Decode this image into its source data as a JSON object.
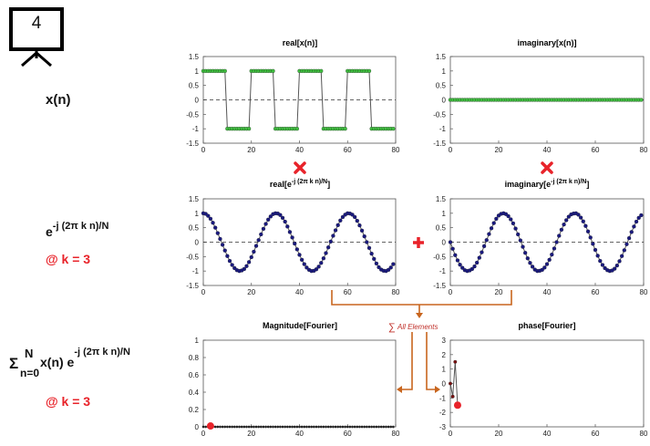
{
  "slide": {
    "number": "4"
  },
  "rows": {
    "signal": {
      "label": "x(n)"
    },
    "kernel": {
      "base": "e",
      "exponent": "-j (2π k n)/N",
      "k_note": "@ k = 3"
    },
    "result": {
      "sigma": "Σ",
      "upper": "N",
      "lower": "n=0",
      "body": "x(n) e",
      "exponent": "-j (2π k n)/N",
      "k_note": "@ k = 3"
    }
  },
  "annotations": {
    "sum_label": "All Elements"
  },
  "charts": {
    "real_x": {
      "title": "real[x(n)]",
      "x_ticks": [
        "0",
        "20",
        "40",
        "60",
        "80"
      ],
      "y_ticks": [
        "1.5",
        "1",
        "0.5",
        "0",
        "-0.5",
        "-1",
        "-1.5"
      ]
    },
    "imag_x": {
      "title": "imaginary[x(n)]",
      "x_ticks": [
        "0",
        "20",
        "40",
        "60",
        "80"
      ],
      "y_ticks": [
        "1.5",
        "1",
        "0.5",
        "0",
        "-0.5",
        "-1",
        "-1.5"
      ]
    },
    "real_e": {
      "title_main": "real[e",
      "title_sup": "-j (2π k n)/N",
      "title_end": "]",
      "x_ticks": [
        "0",
        "20",
        "40",
        "60",
        "80"
      ],
      "y_ticks": [
        "1.5",
        "1",
        "0.5",
        "0",
        "-0.5",
        "-1",
        "-1.5"
      ]
    },
    "imag_e": {
      "title_main": "imaginary[e",
      "title_sup": "-j (2π k n)/N",
      "title_end": "]",
      "x_ticks": [
        "0",
        "20",
        "40",
        "60",
        "80"
      ],
      "y_ticks": [
        "1.5",
        "1",
        "0.5",
        "0",
        "-0.5",
        "-1",
        "-1.5"
      ]
    },
    "magnitude": {
      "title": "Magnitude[Fourier]",
      "x_ticks": [
        "0",
        "20",
        "40",
        "60",
        "80"
      ],
      "y_ticks": [
        "1",
        "0.8",
        "0.6",
        "0.4",
        "0.2",
        "0"
      ]
    },
    "phase": {
      "title": "phase[Fourier]",
      "x_ticks": [
        "0",
        "20",
        "40",
        "60",
        "80"
      ],
      "y_ticks": [
        "3",
        "2",
        "1",
        "0",
        "-1",
        "-2",
        "-3"
      ]
    }
  },
  "colors": {
    "signal_dots": "#3fbf3f",
    "kernel_dots": "#1a1a80",
    "highlight": "#e8232a",
    "flow_arrow": "#c8651e",
    "multiply_x": "#e8232a",
    "plus": "#e8232a"
  },
  "chart_data": [
    {
      "type": "line",
      "title": "real[x(n)]",
      "xlim": [
        0,
        80
      ],
      "ylim": [
        -1.5,
        1.5
      ],
      "x": [
        0,
        1,
        2,
        3,
        4,
        5,
        6,
        7,
        8,
        9,
        10,
        11,
        12,
        13,
        14,
        15,
        16,
        17,
        18,
        19,
        20,
        21,
        22,
        23,
        24,
        25,
        26,
        27,
        28,
        29,
        30,
        31,
        32,
        33,
        34,
        35,
        36,
        37,
        38,
        39,
        40,
        41,
        42,
        43,
        44,
        45,
        46,
        47,
        48,
        49,
        50,
        51,
        52,
        53,
        54,
        55,
        56,
        57,
        58,
        59,
        60,
        61,
        62,
        63,
        64,
        65,
        66,
        67,
        68,
        69,
        70,
        71,
        72,
        73,
        74,
        75,
        76,
        77,
        78,
        79
      ],
      "y": [
        1,
        1,
        1,
        1,
        1,
        1,
        1,
        1,
        1,
        1,
        -1,
        -1,
        -1,
        -1,
        -1,
        -1,
        -1,
        -1,
        -1,
        -1,
        1,
        1,
        1,
        1,
        1,
        1,
        1,
        1,
        1,
        1,
        -1,
        -1,
        -1,
        -1,
        -1,
        -1,
        -1,
        -1,
        -1,
        -1,
        1,
        1,
        1,
        1,
        1,
        1,
        1,
        1,
        1,
        1,
        -1,
        -1,
        -1,
        -1,
        -1,
        -1,
        -1,
        -1,
        -1,
        -1,
        1,
        1,
        1,
        1,
        1,
        1,
        1,
        1,
        1,
        1,
        -1,
        -1,
        -1,
        -1,
        -1,
        -1,
        -1,
        -1,
        -1,
        -1
      ]
    },
    {
      "type": "line",
      "title": "imaginary[x(n)]",
      "xlim": [
        0,
        80
      ],
      "ylim": [
        -1.5,
        1.5
      ],
      "x": [
        0,
        1,
        2,
        3,
        4,
        5,
        6,
        7,
        8,
        9,
        10,
        11,
        12,
        13,
        14,
        15,
        16,
        17,
        18,
        19,
        20,
        21,
        22,
        23,
        24,
        25,
        26,
        27,
        28,
        29,
        30,
        31,
        32,
        33,
        34,
        35,
        36,
        37,
        38,
        39,
        40,
        41,
        42,
        43,
        44,
        45,
        46,
        47,
        48,
        49,
        50,
        51,
        52,
        53,
        54,
        55,
        56,
        57,
        58,
        59,
        60,
        61,
        62,
        63,
        64,
        65,
        66,
        67,
        68,
        69,
        70,
        71,
        72,
        73,
        74,
        75,
        76,
        77,
        78,
        79
      ],
      "y": [
        0,
        0,
        0,
        0,
        0,
        0,
        0,
        0,
        0,
        0,
        0,
        0,
        0,
        0,
        0,
        0,
        0,
        0,
        0,
        0,
        0,
        0,
        0,
        0,
        0,
        0,
        0,
        0,
        0,
        0,
        0,
        0,
        0,
        0,
        0,
        0,
        0,
        0,
        0,
        0,
        0,
        0,
        0,
        0,
        0,
        0,
        0,
        0,
        0,
        0,
        0,
        0,
        0,
        0,
        0,
        0,
        0,
        0,
        0,
        0,
        0,
        0,
        0,
        0,
        0,
        0,
        0,
        0,
        0,
        0,
        0,
        0,
        0,
        0,
        0,
        0,
        0,
        0,
        0,
        0
      ]
    },
    {
      "type": "line",
      "title": "real[e^-j (2π k n)/N]",
      "xlim": [
        0,
        80
      ],
      "ylim": [
        -1.5,
        1.5
      ],
      "x": [
        0,
        1,
        2,
        3,
        4,
        5,
        6,
        7,
        8,
        9,
        10,
        11,
        12,
        13,
        14,
        15,
        16,
        17,
        18,
        19,
        20,
        21,
        22,
        23,
        24,
        25,
        26,
        27,
        28,
        29,
        30,
        31,
        32,
        33,
        34,
        35,
        36,
        37,
        38,
        39,
        40,
        41,
        42,
        43,
        44,
        45,
        46,
        47,
        48,
        49,
        50,
        51,
        52,
        53,
        54,
        55,
        56,
        57,
        58,
        59,
        60,
        61,
        62,
        63,
        64,
        65,
        66,
        67,
        68,
        69,
        70,
        71,
        72,
        73,
        74,
        75,
        76,
        77,
        78,
        79
      ],
      "y": [
        1,
        0.98,
        0.91,
        0.81,
        0.67,
        0.5,
        0.31,
        0.11,
        -0.09,
        -0.29,
        -0.48,
        -0.65,
        -0.79,
        -0.9,
        -0.97,
        -1,
        -0.98,
        -0.93,
        -0.83,
        -0.69,
        -0.52,
        -0.33,
        -0.13,
        0.07,
        0.27,
        0.46,
        0.63,
        0.78,
        0.89,
        0.97,
        1,
        0.99,
        0.94,
        0.84,
        0.71,
        0.54,
        0.35,
        0.16,
        -0.05,
        -0.25,
        -0.44,
        -0.61,
        -0.76,
        -0.88,
        -0.96,
        -1,
        -0.99,
        -0.94,
        -0.85,
        -0.72,
        -0.56,
        -0.38,
        -0.18,
        0.02,
        0.22,
        0.41,
        0.59,
        0.75,
        0.87,
        0.95,
        1,
        0.99,
        0.95,
        0.87,
        0.74,
        0.58,
        0.4,
        0.2,
        0,
        -0.2,
        -0.4,
        -0.58,
        -0.74,
        -0.87,
        -0.95,
        -0.99,
        -1,
        -0.96,
        -0.88,
        -0.76
      ]
    },
    {
      "type": "line",
      "title": "imaginary[e^-j (2π k n)/N]",
      "xlim": [
        0,
        80
      ],
      "ylim": [
        -1.5,
        1.5
      ],
      "x": [
        0,
        1,
        2,
        3,
        4,
        5,
        6,
        7,
        8,
        9,
        10,
        11,
        12,
        13,
        14,
        15,
        16,
        17,
        18,
        19,
        20,
        21,
        22,
        23,
        24,
        25,
        26,
        27,
        28,
        29,
        30,
        31,
        32,
        33,
        34,
        35,
        36,
        37,
        38,
        39,
        40,
        41,
        42,
        43,
        44,
        45,
        46,
        47,
        48,
        49,
        50,
        51,
        52,
        53,
        54,
        55,
        56,
        57,
        58,
        59,
        60,
        61,
        62,
        63,
        64,
        65,
        66,
        67,
        68,
        69,
        70,
        71,
        72,
        73,
        74,
        75,
        76,
        77,
        78,
        79
      ],
      "y": [
        0,
        -0.23,
        -0.45,
        -0.63,
        -0.78,
        -0.89,
        -0.97,
        -1,
        -0.98,
        -0.93,
        -0.84,
        -0.71,
        -0.54,
        -0.35,
        -0.14,
        0.07,
        0.28,
        0.48,
        0.66,
        0.81,
        0.92,
        0.98,
        1,
        0.97,
        0.9,
        0.79,
        0.65,
        0.47,
        0.27,
        0.06,
        -0.16,
        -0.37,
        -0.56,
        -0.72,
        -0.85,
        -0.95,
        -1,
        -0.99,
        -0.96,
        -0.88,
        -0.76,
        -0.61,
        -0.43,
        -0.22,
        0,
        0.22,
        0.43,
        0.61,
        0.76,
        0.88,
        0.96,
        0.99,
        1,
        0.95,
        0.85,
        0.72,
        0.56,
        0.37,
        0.16,
        -0.06,
        -0.27,
        -0.47,
        -0.65,
        -0.79,
        -0.9,
        -0.97,
        -1,
        -0.98,
        -0.92,
        -0.81,
        -0.66,
        -0.48,
        -0.28,
        -0.07,
        0.14,
        0.35,
        0.54,
        0.71,
        0.84,
        0.93
      ]
    },
    {
      "type": "line",
      "title": "Magnitude[Fourier]",
      "xlim": [
        0,
        80
      ],
      "ylim": [
        0,
        1
      ],
      "x": [
        0,
        1,
        2,
        3,
        4,
        5,
        6,
        7,
        8,
        9,
        10,
        11,
        12,
        13,
        14,
        15,
        16,
        17,
        18,
        19,
        20,
        21,
        22,
        23,
        24,
        25,
        26,
        27,
        28,
        29,
        30,
        31,
        32,
        33,
        34,
        35,
        36,
        37,
        38,
        39,
        40,
        41,
        42,
        43,
        44,
        45,
        46,
        47,
        48,
        49,
        50,
        51,
        52,
        53,
        54,
        55,
        56,
        57,
        58,
        59,
        60,
        61,
        62,
        63,
        64,
        65,
        66,
        67,
        68,
        69,
        70,
        71,
        72,
        73,
        74,
        75,
        76,
        77,
        78,
        79
      ],
      "y": [
        0,
        0,
        0,
        0.01,
        0,
        0,
        0,
        0,
        0,
        0,
        0,
        0,
        0,
        0,
        0,
        0,
        0,
        0,
        0,
        0,
        0,
        0,
        0,
        0,
        0,
        0,
        0,
        0,
        0,
        0,
        0,
        0,
        0,
        0,
        0,
        0,
        0,
        0,
        0,
        0,
        0,
        0,
        0,
        0,
        0,
        0,
        0,
        0,
        0,
        0,
        0,
        0,
        0,
        0,
        0,
        0,
        0,
        0,
        0,
        0,
        0,
        0,
        0,
        0,
        0,
        0,
        0,
        0,
        0,
        0,
        0,
        0,
        0,
        0,
        0,
        0,
        0,
        0,
        0,
        0
      ],
      "highlight": {
        "x": 3,
        "y": 0.01
      }
    },
    {
      "type": "line",
      "title": "phase[Fourier]",
      "xlim": [
        0,
        80
      ],
      "ylim": [
        -3,
        3
      ],
      "x": [
        0,
        1,
        2,
        3
      ],
      "y": [
        0,
        -0.9,
        1.5,
        -1.5
      ],
      "highlight": {
        "x": 3,
        "y": -1.5
      }
    }
  ]
}
